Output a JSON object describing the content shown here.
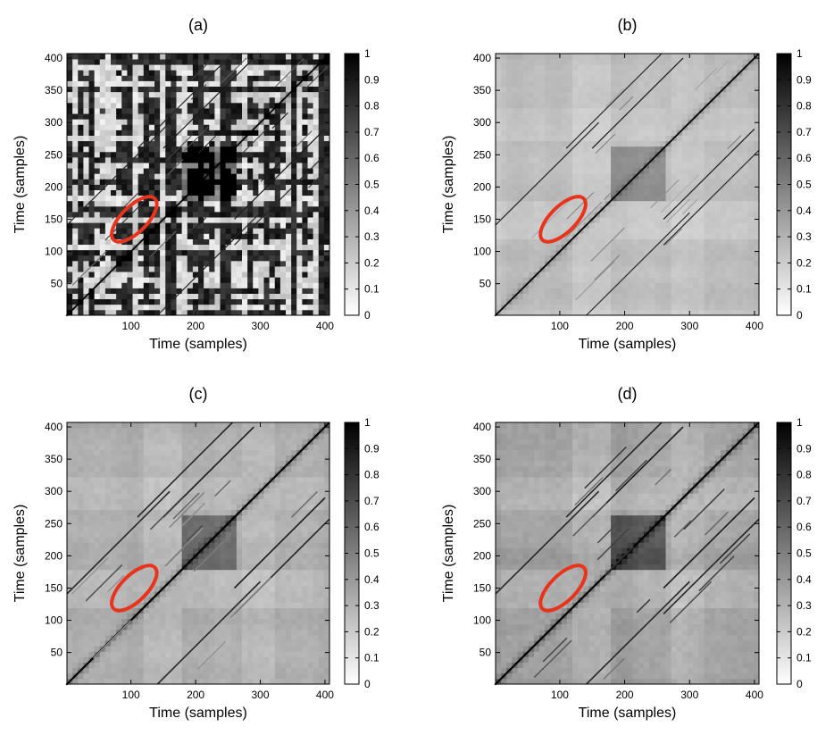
{
  "chart_data": [
    {
      "type": "heatmap",
      "panel": "a",
      "title": "(a)",
      "xlabel": "Time (samples)",
      "ylabel": "Time (samples)",
      "xlim": [
        1,
        407
      ],
      "ylim": [
        1,
        407
      ],
      "xticks": [
        "100",
        "200",
        "300",
        "400"
      ],
      "yticks": [
        "50",
        "100",
        "150",
        "200",
        "250",
        "300",
        "350",
        "400"
      ],
      "colorbar": {
        "ticks": [
          "1",
          "0.9",
          "0.8",
          "0.7",
          "0.6",
          "0.5",
          "0.4",
          "0.3",
          "0.2",
          "0.1",
          "0"
        ],
        "range": [
          0,
          1
        ],
        "colormap": "gray (1 = black, 0 = white)"
      },
      "style": {
        "texture": "binary",
        "contrast": 1.0,
        "lineWidth": 1.2
      },
      "diagonal_lines": [
        {
          "start": 0,
          "end": 407,
          "intensity": 1.0
        },
        {
          "start": 150,
          "end": 290,
          "intensity": 0.9
        },
        {
          "start": 260,
          "end": 407,
          "intensity": 0.85
        },
        {
          "start": 0,
          "end": 160,
          "intensity": 0.85
        }
      ],
      "dark_block": {
        "x": [
          180,
          260
        ],
        "y": [
          180,
          260
        ]
      },
      "highlight_ellipse": {
        "cx": 105,
        "cy": 150,
        "rx": 45,
        "ry": 20,
        "angle_deg": 45,
        "color": "#e8341c"
      }
    },
    {
      "type": "heatmap",
      "panel": "b",
      "title": "(b)",
      "xlabel": "Time (samples)",
      "ylabel": "Time (samples)",
      "xlim": [
        1,
        407
      ],
      "ylim": [
        1,
        407
      ],
      "xticks": [
        "100",
        "200",
        "300",
        "400"
      ],
      "yticks": [
        "50",
        "100",
        "150",
        "200",
        "250",
        "300",
        "350",
        "400"
      ],
      "colorbar": {
        "ticks": [
          "1",
          "0.9",
          "0.8",
          "0.7",
          "0.6",
          "0.5",
          "0.4",
          "0.3",
          "0.2",
          "0.1",
          "0"
        ],
        "range": [
          0,
          1
        ],
        "colormap": "gray (1 = black, 0 = white)"
      },
      "style": {
        "texture": "smooth",
        "contrast": 0.55,
        "lineWidth": 1.2
      },
      "diagonal_lines": [
        {
          "start": 0,
          "end": 407,
          "intensity": 1.0
        },
        {
          "start": 150,
          "end": 290,
          "intensity": 0.9
        },
        {
          "start": 260,
          "end": 407,
          "intensity": 0.85
        },
        {
          "start": 0,
          "end": 160,
          "intensity": 0.85
        }
      ],
      "dark_block": {
        "x": [
          180,
          260
        ],
        "y": [
          180,
          260
        ]
      },
      "highlight_ellipse": {
        "cx": 105,
        "cy": 150,
        "rx": 45,
        "ry": 20,
        "angle_deg": 45,
        "color": "#e8341c"
      }
    },
    {
      "type": "heatmap",
      "panel": "c",
      "title": "(c)",
      "xlabel": "Time (samples)",
      "ylabel": "Time (samples)",
      "xlim": [
        1,
        407
      ],
      "ylim": [
        1,
        407
      ],
      "xticks": [
        "100",
        "200",
        "300",
        "400"
      ],
      "yticks": [
        "50",
        "100",
        "150",
        "200",
        "250",
        "300",
        "350",
        "400"
      ],
      "colorbar": {
        "ticks": [
          "1",
          "0.9",
          "0.8",
          "0.7",
          "0.6",
          "0.5",
          "0.4",
          "0.3",
          "0.2",
          "0.1",
          "0"
        ],
        "range": [
          0,
          1
        ],
        "colormap": "gray (1 = black, 0 = white)"
      },
      "style": {
        "texture": "smooth",
        "contrast": 0.75,
        "lineWidth": 1.6
      },
      "diagonal_lines": [
        {
          "start": 0,
          "end": 407,
          "intensity": 1.0
        },
        {
          "start": 150,
          "end": 290,
          "intensity": 0.9
        },
        {
          "start": 260,
          "end": 407,
          "intensity": 0.85
        },
        {
          "start": 0,
          "end": 160,
          "intensity": 0.85
        }
      ],
      "dark_block": {
        "x": [
          180,
          260
        ],
        "y": [
          180,
          260
        ]
      },
      "highlight_ellipse": {
        "cx": 105,
        "cy": 150,
        "rx": 45,
        "ry": 20,
        "angle_deg": 45,
        "color": "#e8341c"
      }
    },
    {
      "type": "heatmap",
      "panel": "d",
      "title": "(d)",
      "xlabel": "Time (samples)",
      "ylabel": "Time (samples)",
      "xlim": [
        1,
        407
      ],
      "ylim": [
        1,
        407
      ],
      "xticks": [
        "100",
        "200",
        "300",
        "400"
      ],
      "yticks": [
        "50",
        "100",
        "150",
        "200",
        "250",
        "300",
        "350",
        "400"
      ],
      "colorbar": {
        "ticks": [
          "1",
          "0.9",
          "0.8",
          "0.7",
          "0.6",
          "0.5",
          "0.4",
          "0.3",
          "0.2",
          "0.1",
          "0"
        ],
        "range": [
          0,
          1
        ],
        "colormap": "gray (1 = black, 0 = white)"
      },
      "style": {
        "texture": "smooth",
        "contrast": 0.85,
        "lineWidth": 1.6
      },
      "diagonal_lines": [
        {
          "start": 0,
          "end": 407,
          "intensity": 1.0
        },
        {
          "start": 150,
          "end": 290,
          "intensity": 0.9
        },
        {
          "start": 260,
          "end": 407,
          "intensity": 0.85
        },
        {
          "start": 0,
          "end": 160,
          "intensity": 0.85
        }
      ],
      "dark_block": {
        "x": [
          180,
          260
        ],
        "y": [
          180,
          260
        ]
      },
      "highlight_ellipse": {
        "cx": 105,
        "cy": 150,
        "rx": 45,
        "ry": 20,
        "angle_deg": 45,
        "color": "#e8341c"
      }
    }
  ]
}
